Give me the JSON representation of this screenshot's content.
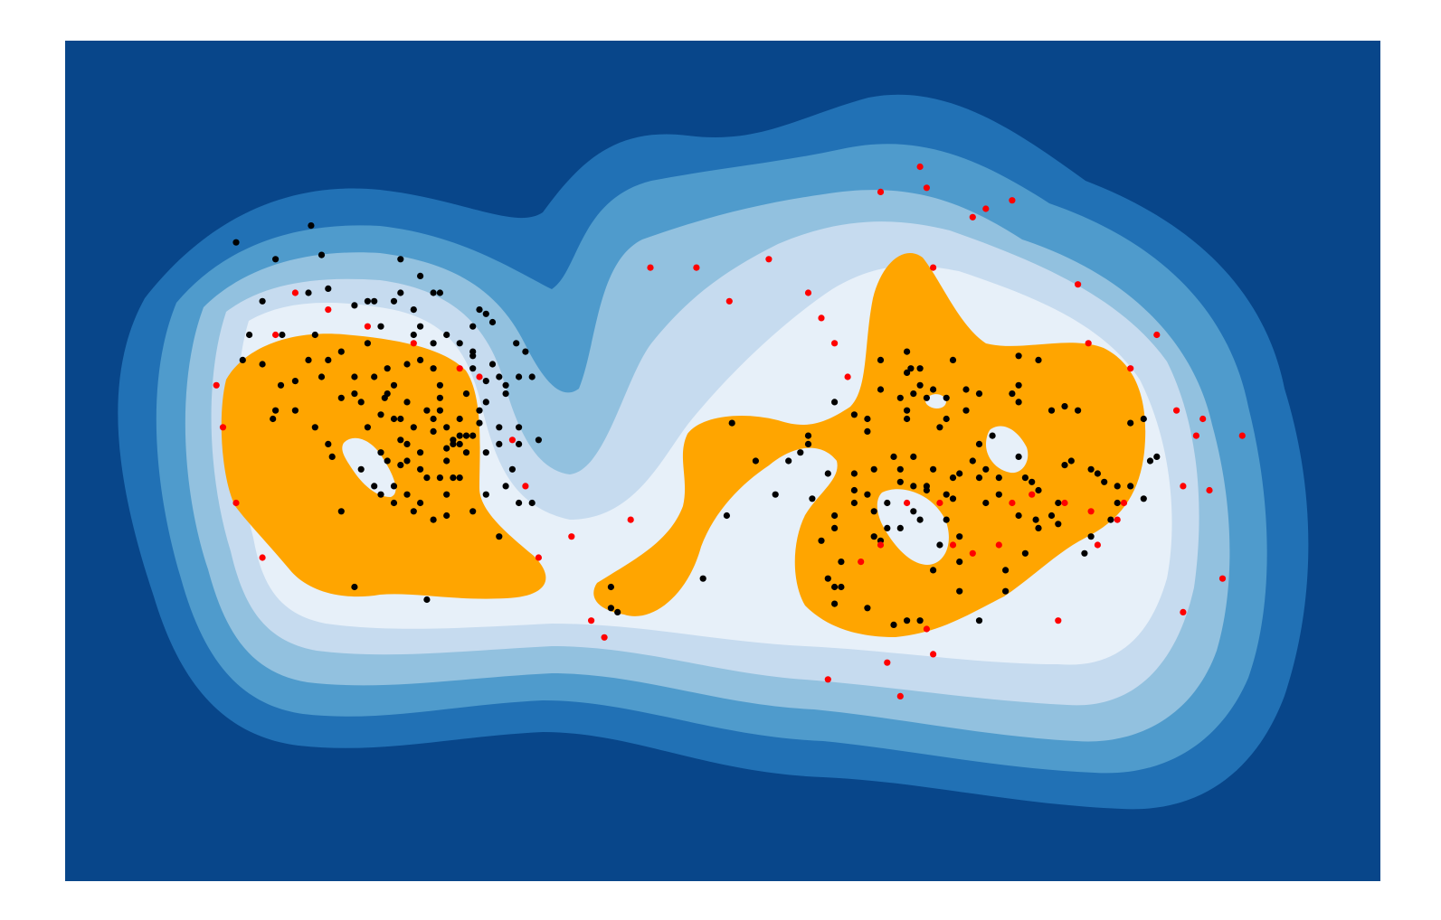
{
  "chart_data": {
    "type": "contour",
    "title": "",
    "xlabel": "",
    "ylabel": "",
    "axes_visible": false,
    "grid": false,
    "xlim": [
      0,
      100
    ],
    "ylim": [
      0,
      100
    ],
    "colors": {
      "background": "#08468a",
      "levels": [
        "#08468a",
        "#2171b5",
        "#4f9bcc",
        "#92c1df",
        "#c6dbef",
        "#e7f0f9"
      ],
      "decision_region": "#ffa500",
      "inlier_points": "#000000",
      "outlier_points": "#ff0000"
    },
    "series": [
      {
        "kind": "inliers",
        "points": [
          [
            13,
            76
          ],
          [
            16,
            74
          ],
          [
            18.7,
            78
          ],
          [
            19.5,
            74.5
          ],
          [
            18.5,
            70
          ],
          [
            20,
            70.5
          ],
          [
            15,
            69
          ],
          [
            14,
            65
          ],
          [
            13.5,
            62
          ],
          [
            15,
            61.5
          ],
          [
            16.5,
            65
          ],
          [
            16.4,
            59
          ],
          [
            17.5,
            59.5
          ],
          [
            18.5,
            62
          ],
          [
            19.5,
            60
          ],
          [
            17.5,
            56
          ],
          [
            16,
            56
          ],
          [
            15.8,
            55
          ],
          [
            19,
            65
          ],
          [
            20,
            62
          ],
          [
            21,
            63
          ],
          [
            21,
            57.5
          ],
          [
            22,
            58
          ],
          [
            22.5,
            57
          ],
          [
            23,
            64
          ],
          [
            23.5,
            60
          ],
          [
            24,
            66
          ],
          [
            24.3,
            57.5
          ],
          [
            25,
            69
          ],
          [
            25.5,
            70
          ],
          [
            25.5,
            74
          ],
          [
            26.5,
            68
          ],
          [
            26.5,
            65
          ],
          [
            27,
            62
          ],
          [
            28,
            61
          ],
          [
            28,
            64
          ],
          [
            28.5,
            57.5
          ],
          [
            28.5,
            56
          ],
          [
            29,
            54
          ],
          [
            28,
            53.5
          ],
          [
            26,
            52
          ],
          [
            25.5,
            55
          ],
          [
            25,
            59
          ],
          [
            24.5,
            61
          ],
          [
            23,
            54
          ],
          [
            24,
            51
          ],
          [
            22.5,
            49
          ],
          [
            19,
            54
          ],
          [
            20.3,
            50.5
          ],
          [
            21,
            44
          ],
          [
            24,
            46
          ],
          [
            25,
            45
          ],
          [
            26,
            46
          ],
          [
            27,
            45
          ],
          [
            27.5,
            48
          ],
          [
            29,
            50
          ],
          [
            30,
            53
          ],
          [
            30.5,
            58
          ],
          [
            31,
            61
          ],
          [
            31,
            62.5
          ],
          [
            31,
            66
          ],
          [
            31.5,
            68
          ],
          [
            32,
            67.5
          ],
          [
            32.5,
            66.5
          ],
          [
            33.5,
            59
          ],
          [
            34.5,
            60
          ],
          [
            33,
            60
          ],
          [
            32,
            59.5
          ],
          [
            28.5,
            70
          ],
          [
            27,
            72
          ],
          [
            28,
            70
          ],
          [
            29,
            65
          ],
          [
            30,
            64
          ],
          [
            31,
            63
          ],
          [
            32.5,
            61.5
          ],
          [
            33.5,
            58
          ],
          [
            32,
            57
          ],
          [
            31.5,
            54.5
          ],
          [
            30.5,
            53
          ],
          [
            30,
            55
          ],
          [
            29.5,
            52
          ],
          [
            29,
            51.5
          ],
          [
            27,
            51
          ],
          [
            25.5,
            52.5
          ],
          [
            24,
            55.5
          ],
          [
            24.5,
            58
          ],
          [
            26,
            57
          ],
          [
            26.5,
            54
          ],
          [
            28,
            55
          ],
          [
            30,
            52
          ],
          [
            32,
            51
          ],
          [
            33,
            52
          ],
          [
            34,
            49
          ],
          [
            30.5,
            51
          ],
          [
            31,
            53
          ],
          [
            29.5,
            48
          ],
          [
            33,
            54
          ],
          [
            35,
            63
          ],
          [
            34.3,
            64
          ],
          [
            35.5,
            60
          ],
          [
            34.5,
            54
          ],
          [
            36,
            52.5
          ],
          [
            30,
            48
          ],
          [
            29,
            46
          ],
          [
            31,
            44
          ],
          [
            26.5,
            44
          ],
          [
            28,
            43
          ],
          [
            29,
            43.5
          ],
          [
            33.5,
            47
          ],
          [
            34.5,
            45
          ],
          [
            22,
            35
          ],
          [
            27.5,
            33.5
          ],
          [
            34.5,
            52
          ],
          [
            33,
            41
          ],
          [
            35.5,
            45
          ],
          [
            26,
            61.5
          ],
          [
            20,
            52
          ],
          [
            23.5,
            69
          ],
          [
            22,
            68.5
          ],
          [
            27,
            66
          ],
          [
            24.5,
            50
          ],
          [
            25.5,
            49.5
          ],
          [
            27,
            49
          ],
          [
            25,
            47
          ],
          [
            23.5,
            47
          ],
          [
            26,
            50
          ],
          [
            28.5,
            48
          ],
          [
            29.5,
            52.5
          ],
          [
            25,
            55
          ],
          [
            27.5,
            56
          ],
          [
            31.5,
            56
          ],
          [
            32,
            46
          ],
          [
            22,
            60
          ],
          [
            28.5,
            59
          ],
          [
            23,
            69
          ],
          [
            50.7,
            54.5
          ],
          [
            52.5,
            50
          ],
          [
            55,
            50
          ],
          [
            55.9,
            51
          ],
          [
            56.5,
            52
          ],
          [
            58,
            48.5
          ],
          [
            61,
            53.5
          ],
          [
            63,
            50.5
          ],
          [
            63.5,
            49
          ],
          [
            61.5,
            49
          ],
          [
            60,
            48.5
          ],
          [
            58.5,
            43.5
          ],
          [
            56.8,
            45.5
          ],
          [
            58.5,
            42
          ],
          [
            57.5,
            40.5
          ],
          [
            58,
            36
          ],
          [
            58.5,
            33
          ],
          [
            59,
            35
          ],
          [
            50.3,
            43.5
          ],
          [
            48.5,
            36
          ],
          [
            41.5,
            35
          ],
          [
            41.5,
            32.5
          ],
          [
            42,
            32
          ],
          [
            61,
            32.5
          ],
          [
            64,
            31
          ],
          [
            63,
            30.5
          ],
          [
            65,
            31
          ],
          [
            68,
            41
          ],
          [
            67.5,
            45.5
          ],
          [
            67,
            46
          ],
          [
            67.5,
            48
          ],
          [
            69,
            50
          ],
          [
            69.5,
            48
          ],
          [
            70,
            49
          ],
          [
            71,
            48
          ],
          [
            72.5,
            50.5
          ],
          [
            73,
            48
          ],
          [
            73.5,
            47.5
          ],
          [
            74,
            46.5
          ],
          [
            73.8,
            43
          ],
          [
            74,
            42
          ],
          [
            75,
            43.5
          ],
          [
            75.5,
            45
          ],
          [
            73,
            39
          ],
          [
            71.5,
            34.5
          ],
          [
            71.5,
            37
          ],
          [
            69.5,
            31
          ],
          [
            68,
            34.5
          ],
          [
            66.5,
            40
          ],
          [
            64.5,
            44
          ],
          [
            62.5,
            42
          ],
          [
            61.5,
            44
          ],
          [
            60,
            46.5
          ],
          [
            61,
            46
          ],
          [
            63.5,
            47.5
          ],
          [
            65.5,
            47
          ],
          [
            64.5,
            50.5
          ],
          [
            64,
            55
          ],
          [
            63.5,
            57.5
          ],
          [
            64,
            63
          ],
          [
            64.3,
            61
          ],
          [
            65,
            59
          ],
          [
            64.5,
            58
          ],
          [
            65.5,
            57.5
          ],
          [
            67,
            57.5
          ],
          [
            68.5,
            58.5
          ],
          [
            69.5,
            58
          ],
          [
            72,
            58
          ],
          [
            72.5,
            59
          ],
          [
            74,
            62
          ],
          [
            72.5,
            62.5
          ],
          [
            75,
            56
          ],
          [
            76,
            56.5
          ],
          [
            76.5,
            50
          ],
          [
            76,
            49.5
          ],
          [
            78,
            49
          ],
          [
            78.5,
            48.5
          ],
          [
            79,
            47.5
          ],
          [
            80,
            45
          ],
          [
            81,
            47
          ],
          [
            82,
            45.5
          ],
          [
            82.5,
            50
          ],
          [
            83,
            50.5
          ],
          [
            82,
            55
          ],
          [
            81,
            54.5
          ],
          [
            80,
            47
          ],
          [
            79.5,
            43
          ],
          [
            78,
            41
          ],
          [
            77.5,
            39
          ],
          [
            75.5,
            42.5
          ],
          [
            72.5,
            43.5
          ],
          [
            71,
            46
          ],
          [
            70,
            45
          ],
          [
            66,
            49
          ],
          [
            65,
            43
          ],
          [
            63.5,
            42
          ],
          [
            62.5,
            45
          ],
          [
            60,
            45
          ],
          [
            61.5,
            41
          ],
          [
            59,
            38
          ],
          [
            58.5,
            35
          ],
          [
            61,
            55
          ],
          [
            62,
            58.5
          ],
          [
            64,
            56
          ],
          [
            67,
            55
          ],
          [
            68.5,
            56
          ],
          [
            66.5,
            54
          ],
          [
            69.5,
            52
          ],
          [
            70.5,
            53
          ],
          [
            68,
            48.5
          ],
          [
            72.5,
            57
          ],
          [
            67.5,
            62
          ],
          [
            66,
            58.5
          ],
          [
            65,
            61
          ],
          [
            64,
            60.5
          ],
          [
            62,
            62
          ],
          [
            58.5,
            57
          ],
          [
            60,
            55.5
          ],
          [
            56.5,
            53
          ],
          [
            54,
            46
          ],
          [
            62,
            40.5
          ],
          [
            66,
            37
          ],
          [
            67,
            43
          ],
          [
            65.5,
            46.5
          ],
          [
            64.5,
            47
          ],
          [
            68,
            38
          ],
          [
            77,
            56
          ]
        ]
      },
      {
        "kind": "outliers",
        "points": [
          [
            11.5,
            59
          ],
          [
            12,
            54
          ],
          [
            13,
            45
          ],
          [
            15,
            38.5
          ],
          [
            16,
            65
          ],
          [
            17.5,
            70
          ],
          [
            20,
            68
          ],
          [
            23,
            66
          ],
          [
            26.5,
            64
          ],
          [
            30,
            61
          ],
          [
            31.5,
            60
          ],
          [
            34,
            52.5
          ],
          [
            35,
            47
          ],
          [
            36,
            38.5
          ],
          [
            38.5,
            41
          ],
          [
            40,
            31
          ],
          [
            41,
            29
          ],
          [
            43,
            43
          ],
          [
            44.5,
            73
          ],
          [
            48,
            73
          ],
          [
            50.5,
            69
          ],
          [
            53.5,
            74
          ],
          [
            56.5,
            70
          ],
          [
            57.5,
            67
          ],
          [
            58.5,
            64
          ],
          [
            59.5,
            60
          ],
          [
            62,
            82
          ],
          [
            65.5,
            82.5
          ],
          [
            65,
            85
          ],
          [
            66,
            73
          ],
          [
            69,
            79
          ],
          [
            70,
            80
          ],
          [
            72,
            81
          ],
          [
            77,
            71
          ],
          [
            77.8,
            64
          ],
          [
            81,
            61
          ],
          [
            84.5,
            56
          ],
          [
            83,
            65
          ],
          [
            85,
            47
          ],
          [
            86,
            53
          ],
          [
            87,
            46.5
          ],
          [
            78,
            44
          ],
          [
            78.5,
            40
          ],
          [
            76,
            45
          ],
          [
            73.5,
            46
          ],
          [
            72,
            45
          ],
          [
            71,
            40
          ],
          [
            69,
            39
          ],
          [
            67.5,
            40
          ],
          [
            66.5,
            45
          ],
          [
            64,
            45
          ],
          [
            62,
            40
          ],
          [
            60.5,
            38
          ],
          [
            58,
            24
          ],
          [
            62.5,
            26
          ],
          [
            63.5,
            22
          ],
          [
            65.5,
            30
          ],
          [
            66,
            27
          ],
          [
            75.5,
            31
          ],
          [
            80,
            43
          ],
          [
            80.5,
            45
          ],
          [
            86.5,
            55
          ],
          [
            88,
            36
          ],
          [
            89.5,
            53
          ],
          [
            85,
            32
          ]
        ]
      }
    ]
  }
}
